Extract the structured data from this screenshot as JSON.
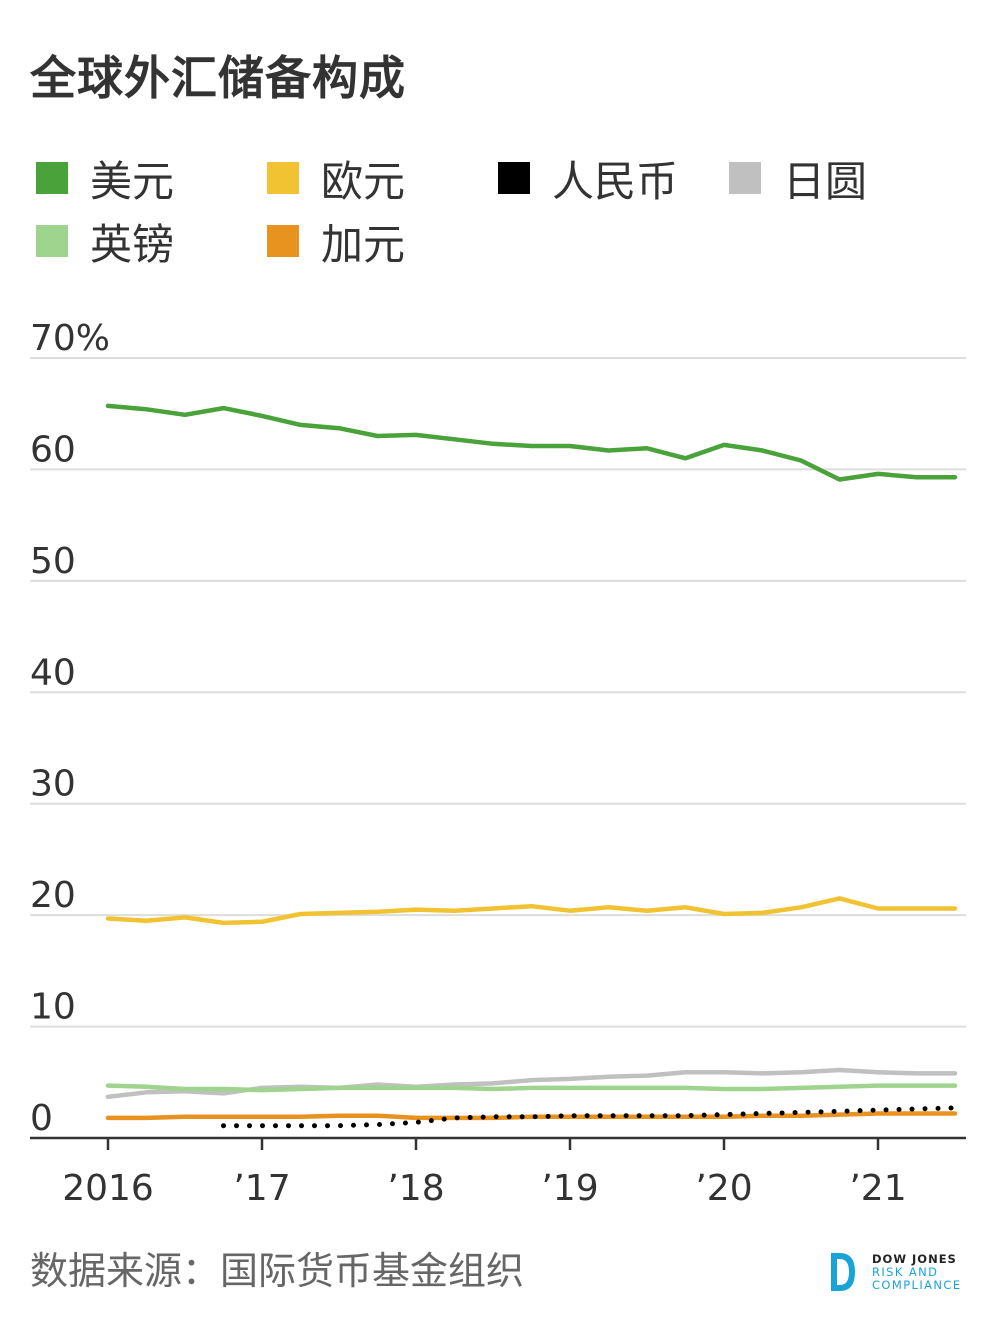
{
  "title": "全球外汇储备构成",
  "legend": [
    {
      "label": "美元",
      "color": "#4aa23a"
    },
    {
      "label": "欧元",
      "color": "#f1c232"
    },
    {
      "label": "人民币",
      "color": "#000000"
    },
    {
      "label": "日圆",
      "color": "#c0c0c0"
    },
    {
      "label": "英镑",
      "color": "#9fd48e"
    },
    {
      "label": "加元",
      "color": "#e8921f"
    }
  ],
  "footer": {
    "source": "数据来源：国际货币基金组织",
    "logo": {
      "line1": "DOW JONES",
      "line2": "RISK AND",
      "line3": "COMPLIANCE",
      "color": "#1aa3d9"
    }
  },
  "chart_data": {
    "type": "line",
    "x_tick_labels": [
      "2016",
      "’17",
      "’18",
      "’19",
      "’20",
      "’21"
    ],
    "y_tick_labels": [
      "70%",
      "60",
      "50",
      "40",
      "30",
      "20",
      "10",
      "0"
    ],
    "y_ticks": [
      70,
      60,
      50,
      40,
      30,
      20,
      10,
      0
    ],
    "ylim": [
      0,
      70
    ],
    "xlim": [
      2016.0,
      2021.55
    ],
    "grid": true,
    "legend_position": "top",
    "series": [
      {
        "name": "美元",
        "color": "#4aa23a",
        "style": "solid",
        "x": [
          2016.0,
          2016.25,
          2016.5,
          2016.75,
          2017.0,
          2017.25,
          2017.5,
          2017.75,
          2018.0,
          2018.25,
          2018.5,
          2018.75,
          2019.0,
          2019.25,
          2019.5,
          2019.75,
          2020.0,
          2020.25,
          2020.5,
          2020.75,
          2021.0,
          2021.25,
          2021.5
        ],
        "y": [
          65.7,
          65.4,
          64.9,
          65.5,
          64.8,
          64.0,
          63.7,
          63.0,
          63.1,
          62.7,
          62.3,
          62.1,
          62.1,
          61.7,
          61.9,
          61.0,
          62.2,
          61.7,
          60.8,
          59.1,
          59.6,
          59.3,
          59.3
        ]
      },
      {
        "name": "欧元",
        "color": "#f1c232",
        "style": "solid",
        "x": [
          2016.0,
          2016.25,
          2016.5,
          2016.75,
          2017.0,
          2017.25,
          2017.5,
          2017.75,
          2018.0,
          2018.25,
          2018.5,
          2018.75,
          2019.0,
          2019.25,
          2019.5,
          2019.75,
          2020.0,
          2020.25,
          2020.5,
          2020.75,
          2021.0,
          2021.25,
          2021.5
        ],
        "y": [
          19.7,
          19.5,
          19.8,
          19.3,
          19.4,
          20.1,
          20.2,
          20.3,
          20.5,
          20.4,
          20.6,
          20.8,
          20.4,
          20.7,
          20.4,
          20.7,
          20.1,
          20.2,
          20.7,
          21.5,
          20.6,
          20.6,
          20.6
        ]
      },
      {
        "name": "日圆",
        "color": "#c0c0c0",
        "style": "solid",
        "x": [
          2016.0,
          2016.25,
          2016.5,
          2016.75,
          2017.0,
          2017.25,
          2017.5,
          2017.75,
          2018.0,
          2018.25,
          2018.5,
          2018.75,
          2019.0,
          2019.25,
          2019.5,
          2019.75,
          2020.0,
          2020.25,
          2020.5,
          2020.75,
          2021.0,
          2021.25,
          2021.5
        ],
        "y": [
          3.7,
          4.1,
          4.2,
          4.0,
          4.5,
          4.6,
          4.5,
          4.8,
          4.6,
          4.8,
          4.9,
          5.2,
          5.3,
          5.5,
          5.6,
          5.9,
          5.9,
          5.8,
          5.9,
          6.1,
          5.9,
          5.8,
          5.8
        ]
      },
      {
        "name": "英镑",
        "color": "#9fd48e",
        "style": "solid",
        "x": [
          2016.0,
          2016.25,
          2016.5,
          2016.75,
          2017.0,
          2017.25,
          2017.5,
          2017.75,
          2018.0,
          2018.25,
          2018.5,
          2018.75,
          2019.0,
          2019.25,
          2019.5,
          2019.75,
          2020.0,
          2020.25,
          2020.5,
          2020.75,
          2021.0,
          2021.25,
          2021.5
        ],
        "y": [
          4.7,
          4.6,
          4.4,
          4.4,
          4.3,
          4.4,
          4.5,
          4.5,
          4.5,
          4.5,
          4.4,
          4.5,
          4.5,
          4.5,
          4.5,
          4.5,
          4.4,
          4.4,
          4.5,
          4.6,
          4.7,
          4.7,
          4.7
        ]
      },
      {
        "name": "加元",
        "color": "#e8921f",
        "style": "solid",
        "x": [
          2016.0,
          2016.25,
          2016.5,
          2016.75,
          2017.0,
          2017.25,
          2017.5,
          2017.75,
          2018.0,
          2018.25,
          2018.5,
          2018.75,
          2019.0,
          2019.25,
          2019.5,
          2019.75,
          2020.0,
          2020.25,
          2020.5,
          2020.75,
          2021.0,
          2021.25,
          2021.5
        ],
        "y": [
          1.8,
          1.8,
          1.9,
          1.9,
          1.9,
          1.9,
          2.0,
          2.0,
          1.8,
          1.8,
          1.8,
          1.9,
          1.9,
          1.9,
          1.9,
          1.9,
          1.9,
          2.0,
          2.0,
          2.1,
          2.2,
          2.2,
          2.2
        ]
      },
      {
        "name": "人民币",
        "color": "#000000",
        "style": "dotted",
        "x": [
          2016.75,
          2017.0,
          2017.25,
          2017.5,
          2017.75,
          2018.0,
          2018.25,
          2018.5,
          2018.75,
          2019.0,
          2019.25,
          2019.5,
          2019.75,
          2020.0,
          2020.25,
          2020.5,
          2020.75,
          2021.0,
          2021.25,
          2021.5
        ],
        "y": [
          1.1,
          1.1,
          1.1,
          1.1,
          1.2,
          1.4,
          1.8,
          1.9,
          1.9,
          2.0,
          2.0,
          2.0,
          2.0,
          2.1,
          2.2,
          2.3,
          2.4,
          2.5,
          2.6,
          2.7
        ]
      }
    ]
  }
}
